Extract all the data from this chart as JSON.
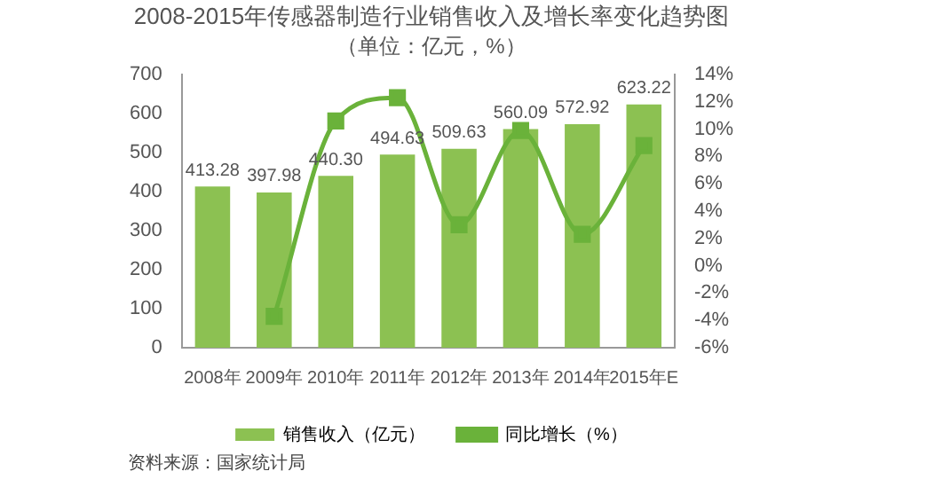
{
  "chart_data": {
    "type": "bar",
    "title": "2008-2015年传感器制造行业销售收入及增长率变化趋势图",
    "subtitle": "（单位：亿元，%）",
    "categories": [
      "2008年",
      "2009年",
      "2010年",
      "2011年",
      "2012年",
      "2013年",
      "2014年",
      "2015年E"
    ],
    "series": [
      {
        "name": "销售收入（亿元）",
        "color": "#8cc152",
        "values": [
          413.28,
          397.98,
          440.3,
          494.63,
          509.63,
          560.09,
          572.92,
          623.22
        ],
        "value_labels": [
          "413.28",
          "397.98",
          "440.30",
          "494.63",
          "509.63",
          "560.09",
          "572.92",
          "623.22"
        ]
      },
      {
        "name": "同比增长（%）",
        "type": "line",
        "axis": "y2",
        "color": "#6ab23a",
        "marker": "square",
        "values": [
          null,
          -3.7,
          10.6,
          12.3,
          3.0,
          9.9,
          2.3,
          8.8
        ]
      }
    ],
    "ylim": [
      0,
      700
    ],
    "yticks": [
      0,
      100,
      200,
      300,
      400,
      500,
      600,
      700
    ],
    "y2lim": [
      -6,
      14
    ],
    "y2ticks": [
      {
        "value": -6,
        "label": "-6%"
      },
      {
        "value": -4,
        "label": "-4%"
      },
      {
        "value": -2,
        "label": "-2%"
      },
      {
        "value": 0,
        "label": "0%"
      },
      {
        "value": 2,
        "label": "2%"
      },
      {
        "value": 4,
        "label": "4%"
      },
      {
        "value": 6,
        "label": "6%"
      },
      {
        "value": 8,
        "label": "8%"
      },
      {
        "value": 10,
        "label": "10%"
      },
      {
        "value": 12,
        "label": "12%"
      },
      {
        "value": 14,
        "label": "14%"
      }
    ],
    "legend": "bottom",
    "grid": false,
    "annotations": [
      "资料来源：国家统计局"
    ]
  }
}
